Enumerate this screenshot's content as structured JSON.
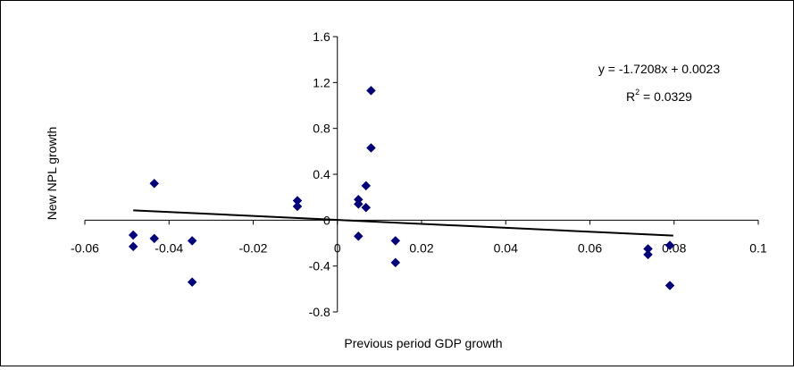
{
  "chart_data": {
    "type": "scatter",
    "title": "",
    "xlabel": "Previous period GDP growth",
    "ylabel": "New NPL growth",
    "xlim": [
      -0.06,
      0.1
    ],
    "ylim": [
      -0.8,
      1.6
    ],
    "x_ticks": [
      "-0.06",
      "-0.04",
      "-0.02",
      "0",
      "0.02",
      "0.04",
      "0.06",
      "0.08",
      "0.1"
    ],
    "y_ticks": [
      "1.6",
      "1.2",
      "0.8",
      "0.4",
      "0",
      "-0.4",
      "-0.8"
    ],
    "x_tick_values": [
      -0.06,
      -0.04,
      -0.02,
      0,
      0.02,
      0.04,
      0.06,
      0.08,
      0.1
    ],
    "y_tick_values": [
      1.6,
      1.2,
      0.8,
      0.4,
      0,
      -0.4,
      -0.8
    ],
    "marker_color": "#00007f",
    "trendline": {
      "equation": "y = -1.7208x + 0.0023",
      "r2_prefix": "R",
      "r2_sup": "2",
      "r2_suffix": " = 0.0329",
      "slope": -1.7208,
      "intercept": 0.0023,
      "x_range": [
        -0.0485,
        0.0798
      ]
    },
    "series": [
      {
        "points": [
          {
            "x": -0.0485,
            "y": -0.13
          },
          {
            "x": -0.0485,
            "y": -0.23
          },
          {
            "x": -0.0435,
            "y": 0.32
          },
          {
            "x": -0.0435,
            "y": -0.16
          },
          {
            "x": -0.0345,
            "y": -0.18
          },
          {
            "x": -0.0345,
            "y": -0.54
          },
          {
            "x": -0.0095,
            "y": 0.17
          },
          {
            "x": -0.0095,
            "y": 0.12
          },
          {
            "x": 0.005,
            "y": 0.18
          },
          {
            "x": 0.005,
            "y": 0.14
          },
          {
            "x": 0.005,
            "y": -0.14
          },
          {
            "x": 0.0068,
            "y": 0.3
          },
          {
            "x": 0.0068,
            "y": 0.11
          },
          {
            "x": 0.008,
            "y": 1.13
          },
          {
            "x": 0.008,
            "y": 0.63
          },
          {
            "x": 0.0138,
            "y": -0.18
          },
          {
            "x": 0.0138,
            "y": -0.37
          },
          {
            "x": 0.0738,
            "y": -0.25
          },
          {
            "x": 0.0738,
            "y": -0.3
          },
          {
            "x": 0.079,
            "y": -0.22
          },
          {
            "x": 0.079,
            "y": -0.57
          }
        ]
      }
    ]
  }
}
